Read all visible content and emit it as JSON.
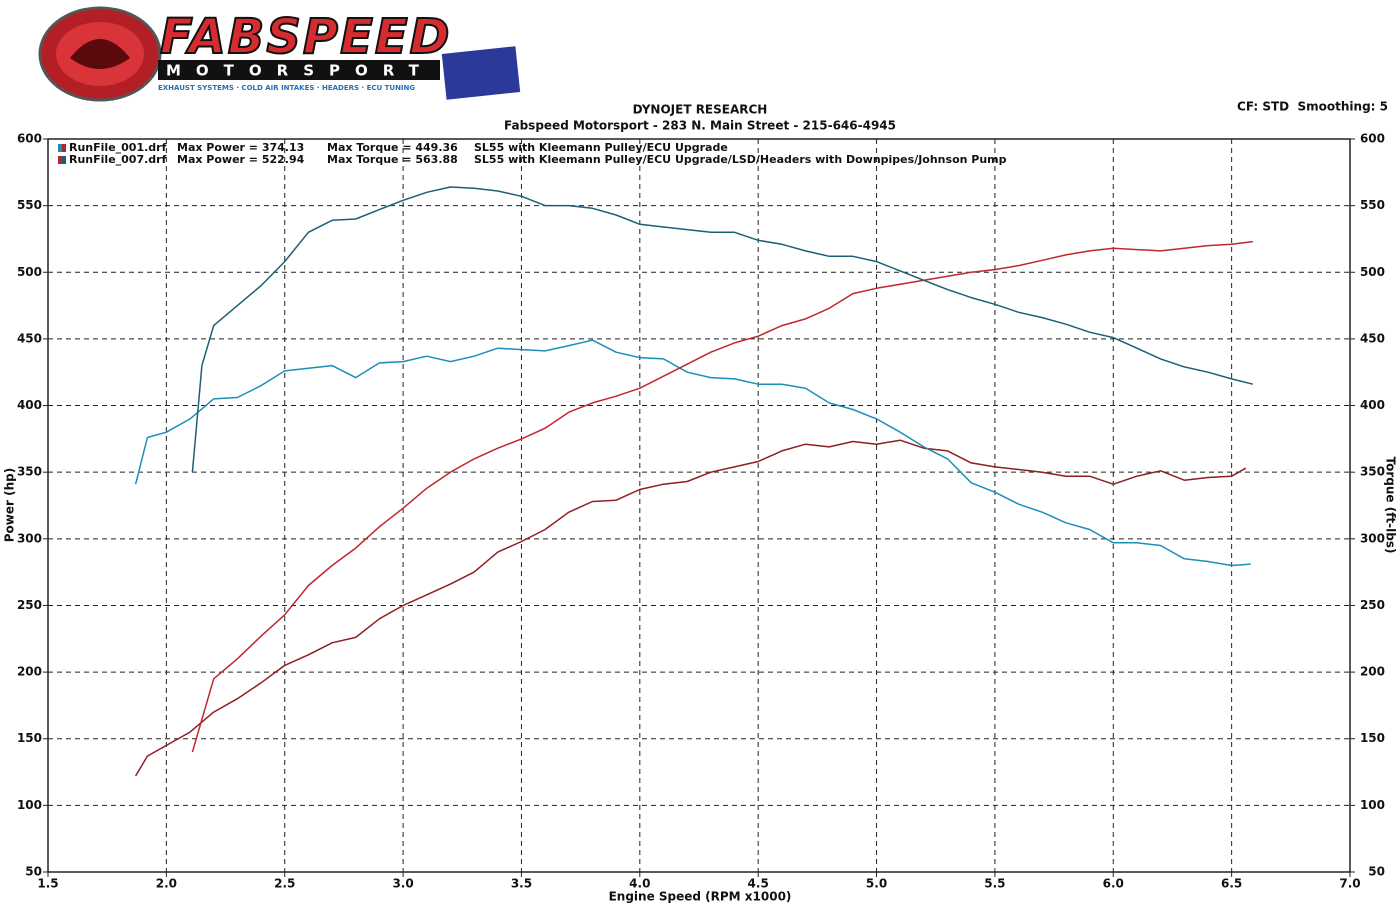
{
  "logo": {
    "brand": "FABSPEED",
    "subbrand": "MOTORSPORT",
    "tagline": "EXHAUST SYSTEMS · COLD AIR INTAKES · HEADERS · ECU TUNING"
  },
  "chart_data": {
    "type": "line",
    "title": "DYNOJET RESEARCH",
    "subtitle": "Fabspeed Motorsport - 283 N. Main Street - 215-646-4945",
    "settings_label": "CF: STD  Smoothing: 5",
    "x_label": "Engine Speed (RPM x1000)",
    "y_label": "Power (hp)",
    "y2_label": "Torque (ft-lbs)",
    "grid": true,
    "xlim": [
      1.5,
      7.0
    ],
    "xticks": [
      1.5,
      {
        "value": 2,
        "label": "2.0"
      },
      2.5,
      {
        "value": 3,
        "label": "3.0"
      },
      3.5,
      {
        "value": 4,
        "label": "4.0"
      },
      4.5,
      {
        "value": 5,
        "label": "5.0"
      },
      5.5,
      {
        "value": 6,
        "label": "6.0"
      },
      6.5,
      {
        "value": 7,
        "label": "7.0"
      }
    ],
    "ylim": [
      50,
      600
    ],
    "yticks": [
      50,
      100,
      150,
      200,
      250,
      300,
      350,
      400,
      450,
      500,
      550,
      600
    ],
    "y2lim": [
      50,
      600
    ],
    "y2ticks": [
      50,
      100,
      150,
      200,
      250,
      300,
      350,
      400,
      450,
      500,
      550,
      600
    ],
    "legend": [
      {
        "file": "RunFile_001.drf",
        "power": "Max Power = 374.13",
        "torque": "Max Torque = 449.36",
        "description": "SL55 with Kleemann Pulley/ECU Upgrade",
        "colors": [
          "#1c8fb8",
          "#b3262b"
        ]
      },
      {
        "file": "RunFile_007.drf",
        "power": "Max Power = 522.94",
        "torque": "Max Torque = 563.88",
        "description": "SL55 with Kleemann Pulley/ECU Upgrade/LSD/Headers with Downpipes/Johnson Pump",
        "colors": [
          "#b3262b",
          "#1c5f78"
        ]
      }
    ],
    "series": [
      {
        "color": "#8e1f22",
        "axis": "y",
        "x": [
          1.87,
          1.92,
          2.0,
          2.1,
          2.2,
          2.3,
          2.4,
          2.5,
          2.6,
          2.7,
          2.8,
          2.9,
          3.0,
          3.1,
          3.2,
          3.3,
          3.4,
          3.5,
          3.6,
          3.7,
          3.8,
          3.9,
          4.0,
          4.1,
          4.2,
          4.3,
          4.4,
          4.5,
          4.6,
          4.7,
          4.8,
          4.9,
          5.0,
          5.1,
          5.2,
          5.3,
          5.4,
          5.5,
          5.6,
          5.7,
          5.8,
          5.9,
          6.0,
          6.1,
          6.2,
          6.3,
          6.4,
          6.5,
          6.56
        ],
        "values": [
          122,
          137,
          145,
          155,
          170,
          180,
          192,
          205,
          213,
          222,
          226,
          240,
          250,
          258,
          266,
          275,
          290,
          298,
          307,
          320,
          328,
          329,
          337,
          341,
          343,
          350,
          354,
          358,
          366,
          371,
          369,
          373,
          371,
          374,
          368,
          366,
          357,
          354,
          352,
          350,
          347,
          347,
          341,
          347,
          351,
          344,
          346,
          347,
          353
        ]
      },
      {
        "color": "#1c8fb8",
        "axis": "y2",
        "x": [
          1.87,
          1.92,
          2.0,
          2.1,
          2.2,
          2.3,
          2.4,
          2.5,
          2.6,
          2.7,
          2.8,
          2.9,
          3.0,
          3.1,
          3.2,
          3.3,
          3.4,
          3.5,
          3.6,
          3.7,
          3.8,
          3.9,
          4.0,
          4.1,
          4.2,
          4.3,
          4.4,
          4.5,
          4.6,
          4.7,
          4.8,
          4.9,
          5.0,
          5.1,
          5.2,
          5.3,
          5.4,
          5.5,
          5.6,
          5.7,
          5.8,
          5.9,
          6.0,
          6.1,
          6.2,
          6.3,
          6.4,
          6.5,
          6.58
        ],
        "values": [
          341,
          376,
          380,
          390,
          405,
          406,
          415,
          426,
          428,
          430,
          421,
          432,
          433,
          437,
          433,
          437,
          443,
          442,
          441,
          445,
          449,
          440,
          436,
          435,
          425,
          421,
          420,
          416,
          416,
          413,
          402,
          397,
          390,
          380,
          369,
          360,
          342,
          335,
          326,
          320,
          312,
          307,
          297,
          297,
          295,
          285,
          283,
          280,
          281
        ]
      },
      {
        "color": "#c0282d",
        "axis": "y",
        "x": [
          2.11,
          2.2,
          2.3,
          2.4,
          2.5,
          2.6,
          2.7,
          2.8,
          2.9,
          3.0,
          3.1,
          3.2,
          3.3,
          3.4,
          3.5,
          3.6,
          3.7,
          3.8,
          3.9,
          4.0,
          4.1,
          4.2,
          4.3,
          4.4,
          4.5,
          4.6,
          4.7,
          4.8,
          4.9,
          5.0,
          5.1,
          5.2,
          5.3,
          5.4,
          5.5,
          5.6,
          5.7,
          5.8,
          5.9,
          6.0,
          6.1,
          6.2,
          6.3,
          6.4,
          6.5,
          6.59
        ],
        "values": [
          140,
          195,
          210,
          227,
          243,
          265,
          280,
          293,
          309,
          323,
          338,
          350,
          360,
          368,
          375,
          383,
          395,
          402,
          407,
          413,
          422,
          431,
          440,
          447,
          452,
          460,
          465,
          473,
          484,
          488,
          491,
          494,
          497,
          500,
          502,
          505,
          509,
          513,
          516,
          518,
          517,
          516,
          518,
          520,
          521,
          523
        ]
      },
      {
        "color": "#1c5f78",
        "axis": "y2",
        "x": [
          2.11,
          2.15,
          2.2,
          2.3,
          2.4,
          2.5,
          2.6,
          2.7,
          2.8,
          2.9,
          3.0,
          3.1,
          3.2,
          3.3,
          3.4,
          3.5,
          3.6,
          3.7,
          3.8,
          3.9,
          4.0,
          4.1,
          4.2,
          4.3,
          4.4,
          4.5,
          4.6,
          4.7,
          4.8,
          4.9,
          5.0,
          5.1,
          5.2,
          5.3,
          5.4,
          5.5,
          5.6,
          5.7,
          5.8,
          5.9,
          6.0,
          6.1,
          6.2,
          6.3,
          6.4,
          6.5,
          6.59
        ],
        "values": [
          350,
          430,
          460,
          475,
          490,
          508,
          530,
          539,
          540,
          547,
          554,
          560,
          564,
          563,
          561,
          557,
          550,
          550,
          548,
          543,
          536,
          534,
          532,
          530,
          530,
          524,
          521,
          516,
          512,
          512,
          508,
          501,
          494,
          487,
          481,
          476,
          470,
          466,
          461,
          455,
          451,
          443,
          435,
          429,
          425,
          420,
          416
        ]
      }
    ]
  }
}
